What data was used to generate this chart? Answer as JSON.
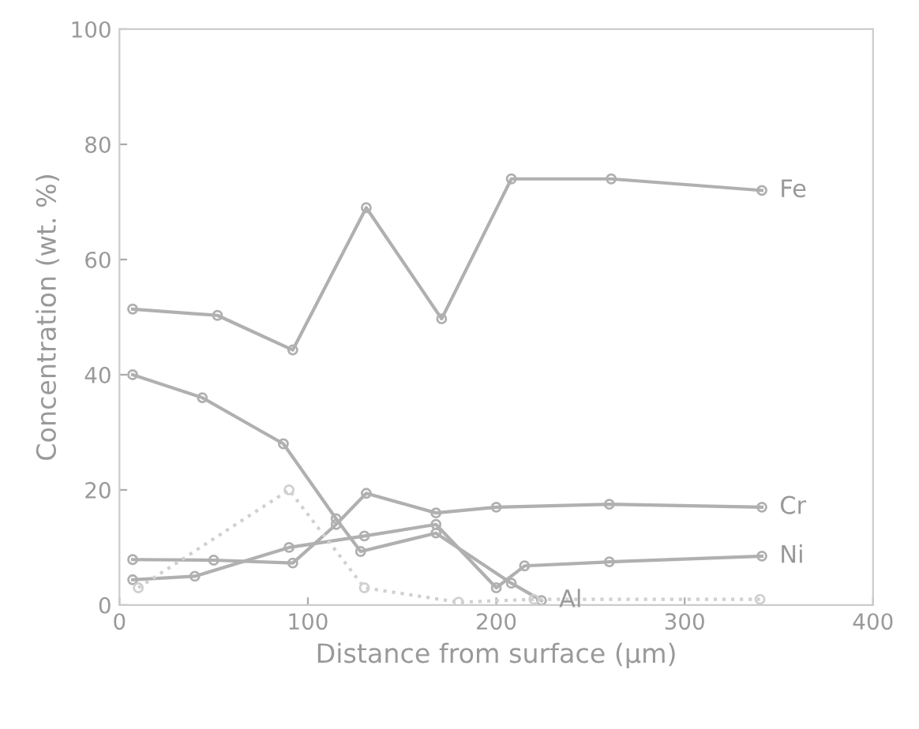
{
  "chart_data": {
    "type": "line",
    "xlabel": "Distance from surface (μm)",
    "ylabel": "Concentration (wt. %)",
    "xlim": [
      0,
      400
    ],
    "xticks": [
      0,
      100,
      200,
      300,
      400
    ],
    "ylim": [
      0,
      100
    ],
    "yticks": [
      0,
      20,
      40,
      60,
      80,
      100
    ],
    "grid": false,
    "legend": false,
    "marker": "circle",
    "series": [
      {
        "name": "Fe",
        "color": "#b0b0b0",
        "x": [
          7,
          52,
          92,
          131,
          171,
          208,
          261,
          341
        ],
        "values": [
          51.4,
          50.3,
          44.3,
          69,
          49.7,
          74,
          74,
          72
        ]
      },
      {
        "name": "Al",
        "color": "#b0b0b0",
        "x": [
          7,
          44,
          87,
          115,
          128,
          168,
          208,
          224
        ],
        "values": [
          40,
          36,
          28,
          15,
          9.3,
          12.5,
          3.8,
          0.8
        ]
      },
      {
        "name": "Cr",
        "color": "#b0b0b0",
        "x": [
          7,
          50,
          92,
          115,
          131,
          168,
          200,
          260,
          341
        ],
        "values": [
          7.9,
          7.8,
          7.3,
          14,
          19.4,
          16,
          17,
          17.5,
          17
        ]
      },
      {
        "name": "Ni",
        "color": "#b0b0b0",
        "x": [
          7,
          40,
          90,
          130,
          168,
          200,
          215,
          260,
          341
        ],
        "values": [
          4.4,
          5,
          10,
          12,
          14,
          3,
          6.8,
          7.5,
          8.5
        ]
      },
      {
        "color": "#d0d0d0",
        "line_style": "dotted",
        "x": [
          10,
          90,
          130,
          180,
          220,
          340
        ],
        "values": [
          3,
          20,
          3,
          0.5,
          1,
          1
        ]
      }
    ]
  }
}
